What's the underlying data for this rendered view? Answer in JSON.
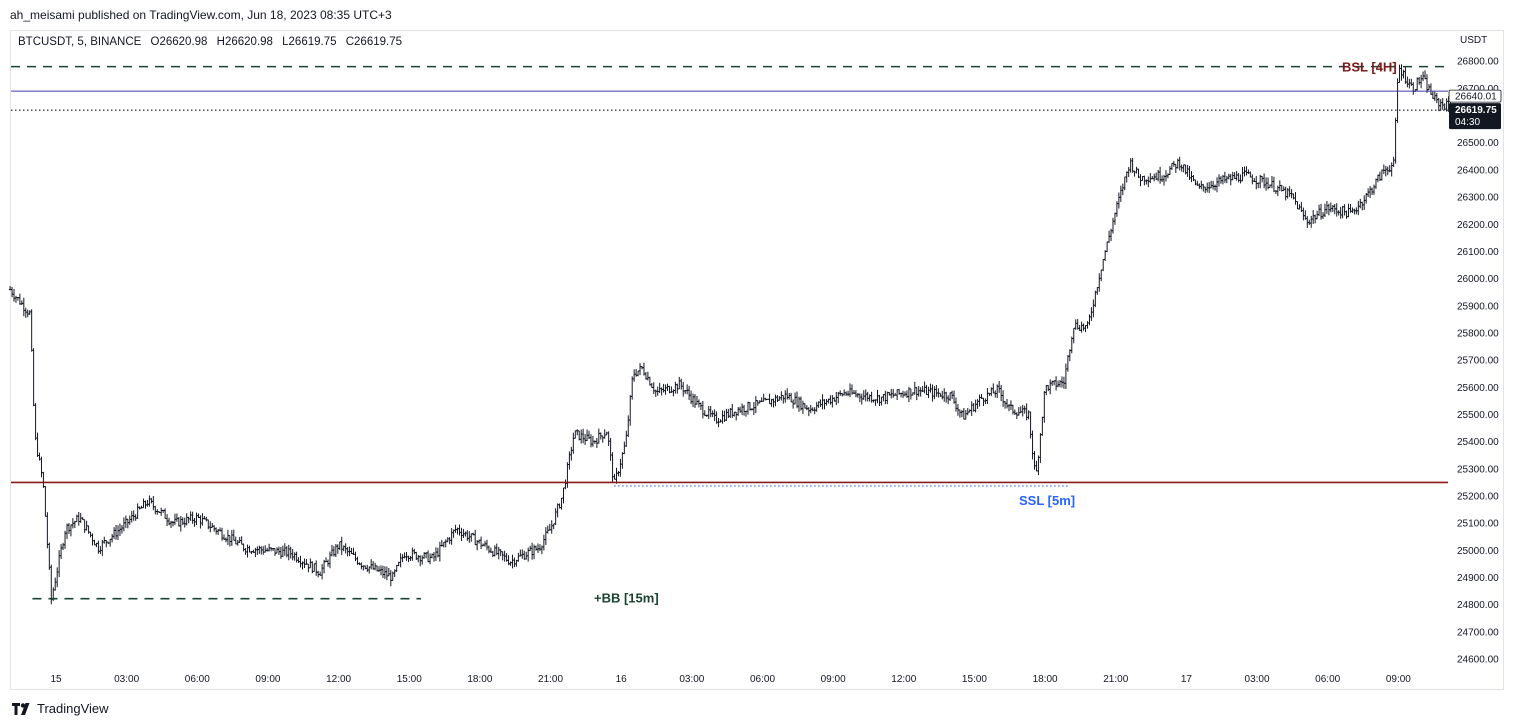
{
  "header": {
    "published": "ah_meisami published on TradingView.com, Jun 18, 2023 08:35 UTC+3"
  },
  "legend": {
    "symbol": "BTCUSDT, 5, BINANCE",
    "open": "O26620.98",
    "high": "H26620.98",
    "low": "L26619.75",
    "close": "C26619.75"
  },
  "footer": {
    "brand": "TradingView"
  },
  "chart_data": {
    "type": "bar",
    "title": "BTCUSDT, 5, BINANCE",
    "y_unit": "USDT",
    "ylim": [
      24540,
      26880
    ],
    "y_ticks": [
      "26800.00",
      "26700.00",
      "26500.00",
      "26400.00",
      "26300.00",
      "26200.00",
      "26100.00",
      "26000.00",
      "25900.00",
      "25800.00",
      "25700.00",
      "25600.00",
      "25500.00",
      "25400.00",
      "25300.00",
      "25200.00",
      "25100.00",
      "25000.00",
      "24900.00",
      "24800.00",
      "24700.00",
      "24600.00"
    ],
    "y_tick_values": [
      26800,
      26700,
      26500,
      26400,
      26300,
      26200,
      26100,
      26000,
      25900,
      25800,
      25700,
      25600,
      25500,
      25400,
      25300,
      25200,
      25100,
      25000,
      24900,
      24800,
      24700,
      24600
    ],
    "x_ticks": [
      {
        "label": "15",
        "hour": 0
      },
      {
        "label": "03:00",
        "hour": 3
      },
      {
        "label": "06:00",
        "hour": 6
      },
      {
        "label": "09:00",
        "hour": 9
      },
      {
        "label": "12:00",
        "hour": 12
      },
      {
        "label": "15:00",
        "hour": 15
      },
      {
        "label": "18:00",
        "hour": 18
      },
      {
        "label": "21:00",
        "hour": 21
      },
      {
        "label": "16",
        "hour": 24
      },
      {
        "label": "03:00",
        "hour": 27
      },
      {
        "label": "06:00",
        "hour": 30
      },
      {
        "label": "09:00",
        "hour": 33
      },
      {
        "label": "12:00",
        "hour": 36
      },
      {
        "label": "15:00",
        "hour": 39
      },
      {
        "label": "18:00",
        "hour": 42
      },
      {
        "label": "21:00",
        "hour": 45
      },
      {
        "label": "17",
        "hour": 48
      },
      {
        "label": "03:00",
        "hour": 51
      },
      {
        "label": "06:00",
        "hour": 54
      },
      {
        "label": "09:00",
        "hour": 57
      }
    ],
    "xlim_hours": [
      -1.95,
      59.3
    ],
    "price_path": [
      {
        "h": -1.95,
        "p": 25960
      },
      {
        "h": -1.1,
        "p": 25870
      },
      {
        "h": -0.9,
        "p": 25420
      },
      {
        "h": -0.55,
        "p": 25250
      },
      {
        "h": -0.2,
        "p": 24820
      },
      {
        "h": 0.4,
        "p": 25080
      },
      {
        "h": 1.0,
        "p": 25120
      },
      {
        "h": 1.8,
        "p": 25010
      },
      {
        "h": 3.0,
        "p": 25100
      },
      {
        "h": 3.9,
        "p": 25180
      },
      {
        "h": 5.0,
        "p": 25100
      },
      {
        "h": 6.0,
        "p": 25120
      },
      {
        "h": 8.0,
        "p": 25010
      },
      {
        "h": 10.0,
        "p": 24990
      },
      {
        "h": 11.2,
        "p": 24920
      },
      {
        "h": 12.0,
        "p": 25020
      },
      {
        "h": 13.0,
        "p": 24950
      },
      {
        "h": 14.3,
        "p": 24900
      },
      {
        "h": 14.8,
        "p": 24990
      },
      {
        "h": 16.0,
        "p": 24970
      },
      {
        "h": 17.0,
        "p": 25080
      },
      {
        "h": 18.5,
        "p": 25000
      },
      {
        "h": 19.3,
        "p": 24960
      },
      {
        "h": 20.5,
        "p": 25010
      },
      {
        "h": 21.0,
        "p": 25080
      },
      {
        "h": 21.5,
        "p": 25200
      },
      {
        "h": 22.0,
        "p": 25430
      },
      {
        "h": 22.8,
        "p": 25400
      },
      {
        "h": 23.4,
        "p": 25440
      },
      {
        "h": 23.7,
        "p": 25240
      },
      {
        "h": 24.2,
        "p": 25400
      },
      {
        "h": 24.5,
        "p": 25650
      },
      {
        "h": 24.9,
        "p": 25670
      },
      {
        "h": 25.5,
        "p": 25580
      },
      {
        "h": 26.5,
        "p": 25610
      },
      {
        "h": 27.3,
        "p": 25530
      },
      {
        "h": 28.0,
        "p": 25480
      },
      {
        "h": 29.0,
        "p": 25520
      },
      {
        "h": 30.0,
        "p": 25540
      },
      {
        "h": 31.0,
        "p": 25570
      },
      {
        "h": 32.0,
        "p": 25520
      },
      {
        "h": 33.5,
        "p": 25580
      },
      {
        "h": 35.0,
        "p": 25560
      },
      {
        "h": 36.5,
        "p": 25590
      },
      {
        "h": 38.0,
        "p": 25570
      },
      {
        "h": 38.5,
        "p": 25490
      },
      {
        "h": 39.3,
        "p": 25560
      },
      {
        "h": 40.0,
        "p": 25590
      },
      {
        "h": 40.5,
        "p": 25520
      },
      {
        "h": 41.3,
        "p": 25500
      },
      {
        "h": 41.6,
        "p": 25260
      },
      {
        "h": 42.0,
        "p": 25600
      },
      {
        "h": 42.8,
        "p": 25620
      },
      {
        "h": 43.2,
        "p": 25830
      },
      {
        "h": 43.8,
        "p": 25820
      },
      {
        "h": 44.4,
        "p": 26050
      },
      {
        "h": 45.0,
        "p": 26250
      },
      {
        "h": 45.6,
        "p": 26430
      },
      {
        "h": 46.0,
        "p": 26370
      },
      {
        "h": 47.0,
        "p": 26380
      },
      {
        "h": 47.7,
        "p": 26430
      },
      {
        "h": 48.5,
        "p": 26330
      },
      {
        "h": 49.5,
        "p": 26360
      },
      {
        "h": 50.5,
        "p": 26380
      },
      {
        "h": 51.5,
        "p": 26350
      },
      {
        "h": 52.5,
        "p": 26300
      },
      {
        "h": 53.1,
        "p": 26210
      },
      {
        "h": 54.0,
        "p": 26260
      },
      {
        "h": 55.0,
        "p": 26240
      },
      {
        "h": 55.7,
        "p": 26310
      },
      {
        "h": 56.4,
        "p": 26400
      },
      {
        "h": 56.8,
        "p": 26420
      },
      {
        "h": 57.0,
        "p": 26780
      },
      {
        "h": 57.6,
        "p": 26700
      },
      {
        "h": 58.0,
        "p": 26740
      },
      {
        "h": 58.6,
        "p": 26650
      },
      {
        "h": 59.3,
        "p": 26630
      }
    ],
    "levels": [
      {
        "name": "BSL [4H]",
        "price": 26780,
        "style": "dashed",
        "color": "#1b4332",
        "from_hour": -1.95,
        "to_hour": 59.3,
        "label_color": "#7a1b1b"
      },
      {
        "name": "blue-line",
        "price": 26690,
        "style": "solid",
        "color": "#3f3fa8",
        "from_hour": -1.95,
        "to_hour": 59.3
      },
      {
        "name": "current-price-line",
        "price": 26619.75,
        "style": "dotted",
        "color": "#131722",
        "from_hour": -1.95,
        "to_hour": 59.3
      },
      {
        "name": "red-level",
        "price": 25250,
        "style": "solid",
        "color": "#8b1a1a",
        "from_hour": -1.95,
        "to_hour": 59.3
      },
      {
        "name": "SSL [5m]",
        "price": 25237,
        "style": "dotted",
        "color": "#2962ff",
        "from_hour": 23.7,
        "to_hour": 43.0,
        "label_color": "#2962ff"
      },
      {
        "name": "+BB [15m]",
        "price": 24822,
        "style": "dashed",
        "color": "#1b4332",
        "from_hour": -1.0,
        "to_hour": 15.5,
        "label_color": "#1b4332"
      }
    ],
    "labels": {
      "bsl": "BSL [4H]",
      "ssl": "SSL [5m]",
      "bb": "+BB [15m]"
    },
    "price_boxes": {
      "blue": "26640.01",
      "last": "26619.75",
      "countdown": "04:30"
    }
  }
}
